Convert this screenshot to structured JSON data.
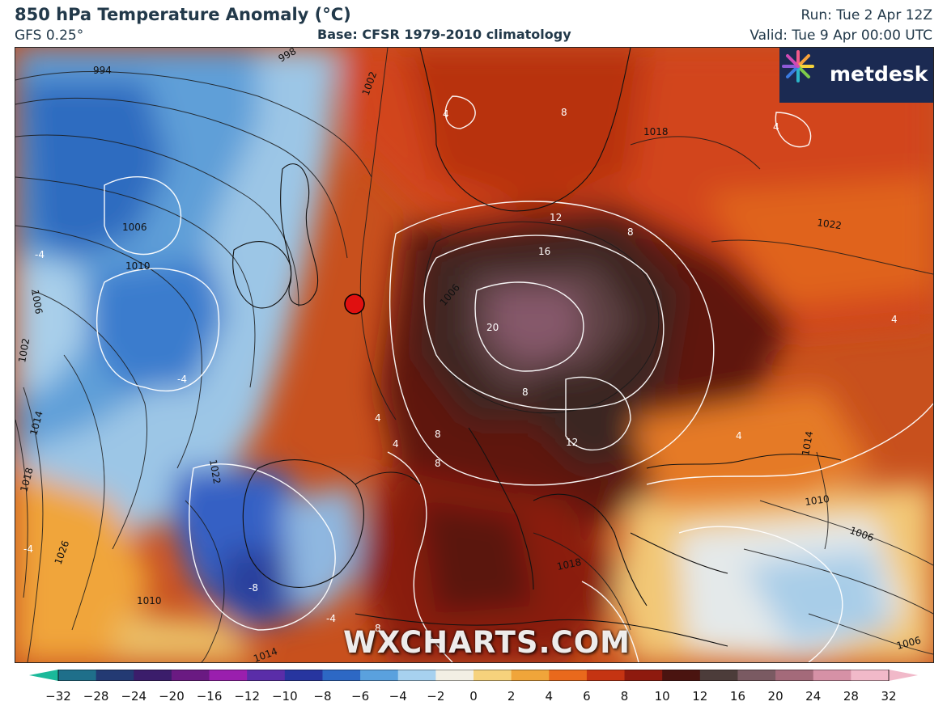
{
  "header": {
    "title": "850 hPa Temperature Anomaly (°C)",
    "model": "GFS 0.25°",
    "base": "Base: CFSR 1979-2010 climatology",
    "run": "Run: Tue 2 Apr 12Z",
    "valid": "Valid: Tue 9 Apr 00:00 UTC"
  },
  "branding": {
    "logo_text": "metdesk",
    "watermark": "WXCHARTS.COM"
  },
  "map": {
    "marker_color": "#e01010",
    "pressure_labels": [
      "994",
      "998",
      "1002",
      "1006",
      "1006",
      "1010",
      "1006",
      "1002",
      "1014",
      "1018",
      "1018",
      "1022",
      "1022",
      "1026",
      "1010",
      "1014",
      "1010",
      "1006",
      "1018",
      "1014",
      "1006"
    ],
    "anomaly_labels": [
      "-4",
      "-4",
      "-8",
      "-4",
      "-4",
      "4",
      "4",
      "8",
      "8",
      "12",
      "16",
      "20",
      "8",
      "12",
      "8",
      "8",
      "4",
      "4",
      "4",
      "4",
      "8"
    ]
  },
  "colorbar": {
    "ticks": [
      "−32",
      "−28",
      "−24",
      "−20",
      "−16",
      "−12",
      "−10",
      "−8",
      "−6",
      "−4",
      "−2",
      "0",
      "2",
      "4",
      "6",
      "8",
      "10",
      "12",
      "16",
      "20",
      "24",
      "28",
      "32"
    ],
    "colors": [
      "#1bb99a",
      "#1f6f8a",
      "#233a73",
      "#3b1d6b",
      "#6a1a82",
      "#9a1fae",
      "#5a2da8",
      "#27359f",
      "#2d68c4",
      "#5aa1de",
      "#a7d1ef",
      "#f2efe4",
      "#f6d27c",
      "#f0a53a",
      "#e9691c",
      "#c53412",
      "#8e1a0e",
      "#4a1410",
      "#4c3c3a",
      "#7a5a62",
      "#a46a7a",
      "#d691a6",
      "#f1b9c9"
    ]
  }
}
